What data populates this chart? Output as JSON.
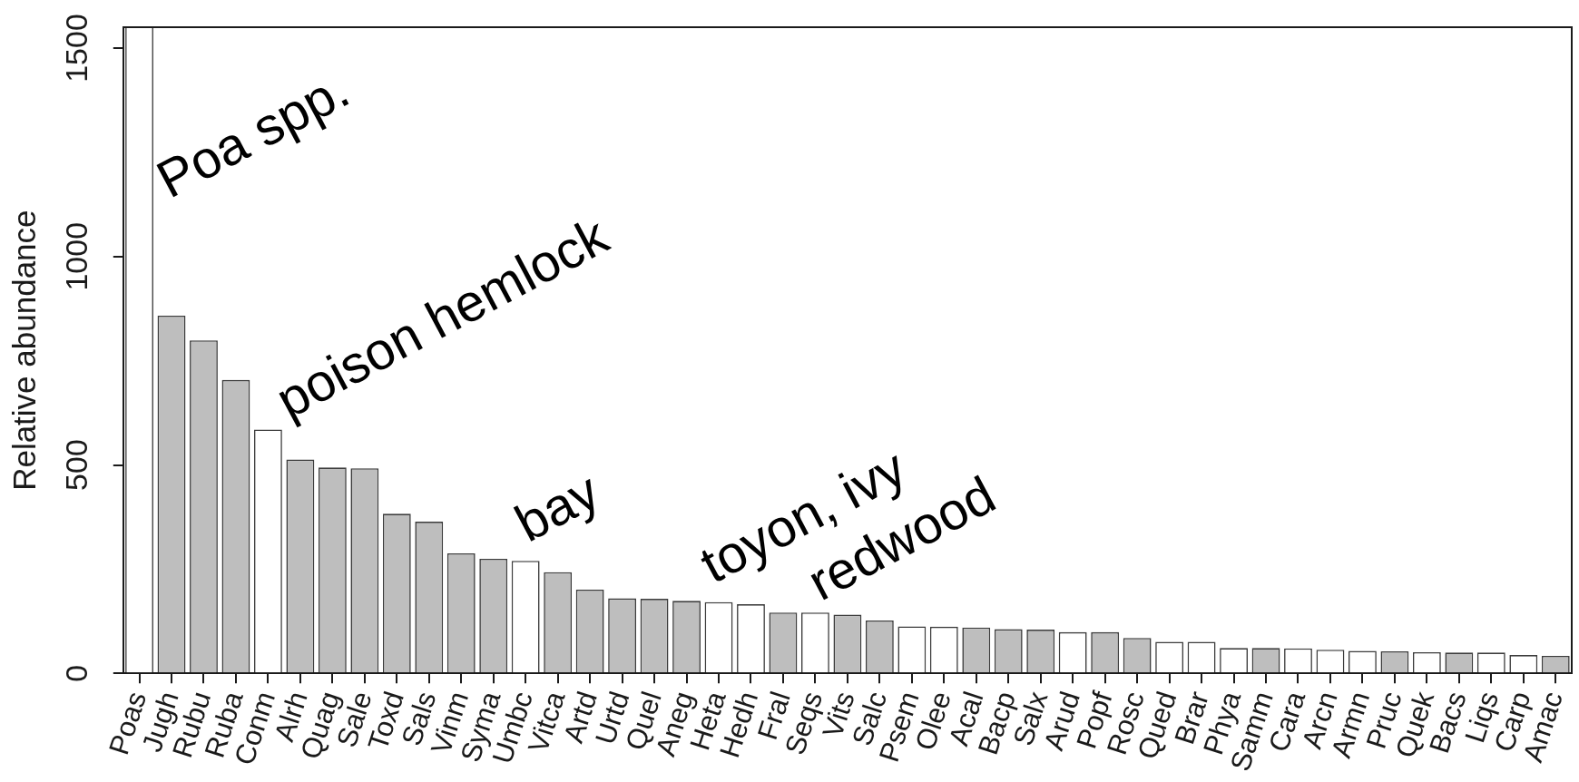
{
  "chart_data": {
    "type": "bar",
    "ylabel": "Relative abundance",
    "categories": [
      "Poas",
      "Jugh",
      "Rubu",
      "Ruba",
      "Conm",
      "Alrh",
      "Quag",
      "Sale",
      "Toxd",
      "Sals",
      "Vinm",
      "Syma",
      "Umbc",
      "Vitca",
      "Artd",
      "Urtd",
      "Quel",
      "Aneg",
      "Heta",
      "Hedh",
      "Fral",
      "Seqs",
      "Vits",
      "Salc",
      "Psem",
      "Olee",
      "Acal",
      "Bacp",
      "Salx",
      "Arud",
      "Popf",
      "Rosc",
      "Qued",
      "Brar",
      "Phya",
      "Samm",
      "Cara",
      "Arcn",
      "Armn",
      "Pruc",
      "Quek",
      "Bacs",
      "Liqs",
      "Carp",
      "Amac"
    ],
    "values": [
      1550,
      858,
      799,
      704,
      585,
      513,
      494,
      492,
      383,
      364,
      288,
      275,
      270,
      243,
      201,
      180,
      179,
      174,
      171,
      166,
      146,
      146,
      141,
      127,
      113,
      112,
      110,
      106,
      105,
      99,
      99,
      85,
      76,
      76,
      61,
      61,
      60,
      57,
      54,
      53,
      51,
      50,
      50,
      44,
      42
    ],
    "colors": [
      "#ffffff",
      "#bebebe",
      "#bebebe",
      "#bebebe",
      "#ffffff",
      "#bebebe",
      "#bebebe",
      "#bebebe",
      "#bebebe",
      "#bebebe",
      "#bebebe",
      "#bebebe",
      "#ffffff",
      "#bebebe",
      "#bebebe",
      "#bebebe",
      "#bebebe",
      "#bebebe",
      "#ffffff",
      "#ffffff",
      "#bebebe",
      "#ffffff",
      "#bebebe",
      "#bebebe",
      "#ffffff",
      "#ffffff",
      "#bebebe",
      "#bebebe",
      "#bebebe",
      "#ffffff",
      "#bebebe",
      "#bebebe",
      "#ffffff",
      "#ffffff",
      "#ffffff",
      "#bebebe",
      "#ffffff",
      "#ffffff",
      "#ffffff",
      "#bebebe",
      "#ffffff",
      "#bebebe",
      "#ffffff",
      "#ffffff",
      "#bebebe"
    ],
    "ylim": [
      0,
      1550
    ],
    "yticks": [
      0,
      500,
      1000,
      1500
    ],
    "annotations": [
      "Poa spp.",
      "poison hemlock",
      "bay",
      "toyon, ivy",
      "redwood"
    ]
  }
}
